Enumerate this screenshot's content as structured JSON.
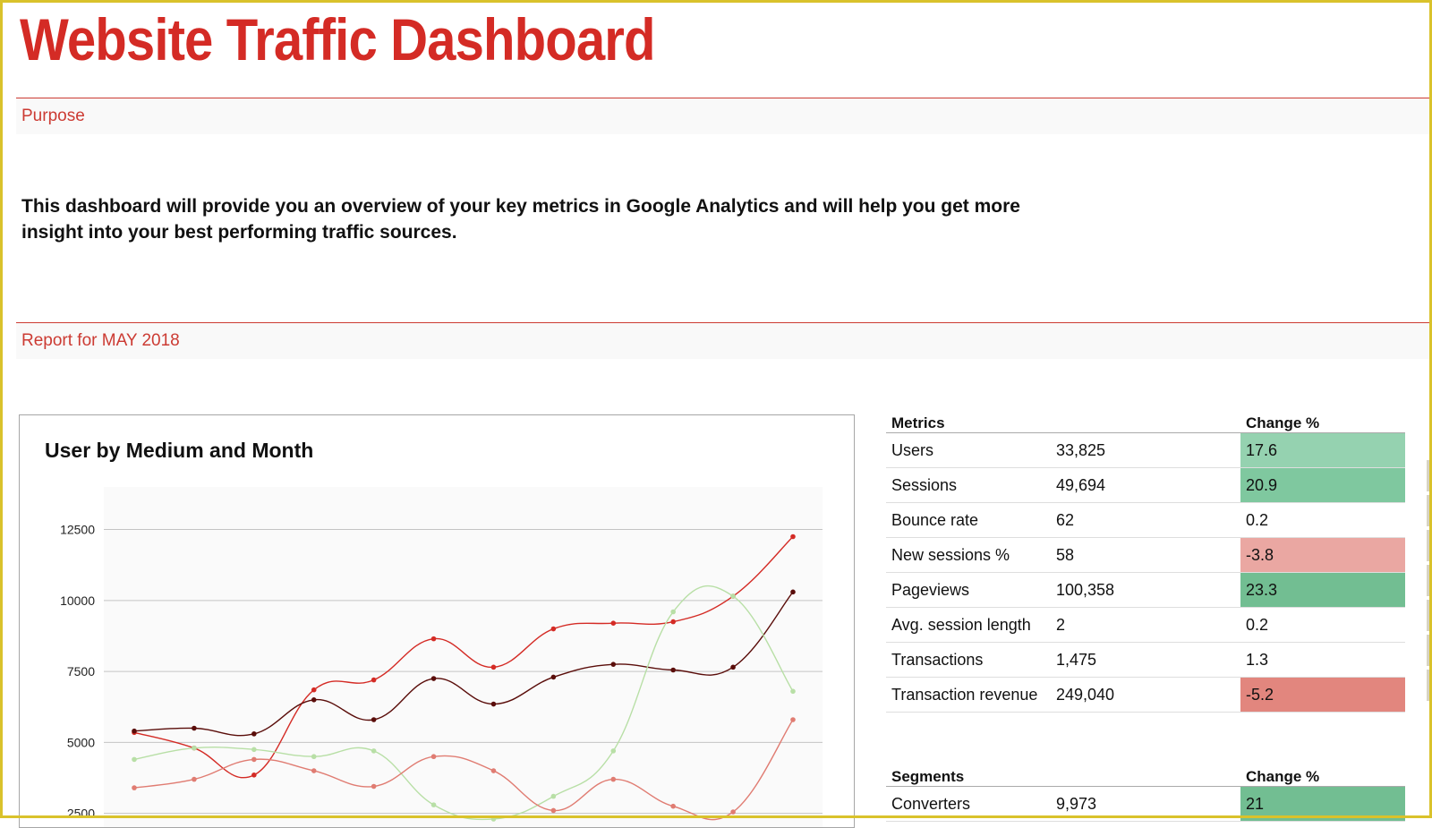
{
  "header": {
    "title": "Website Traffic Dashboard"
  },
  "purpose": {
    "label": "Purpose",
    "text": "This dashboard will provide you an overview of your key metrics in Google Analytics and will help you get more insight into your best performing traffic sources."
  },
  "report": {
    "label": "Report for MAY 2018"
  },
  "colors": {
    "brand_red": "#d42b25",
    "green_light": "#95d2b0",
    "green_mid": "#7fc89f",
    "green_strong": "#72be92",
    "red_light": "#eaa7a2",
    "red_strong": "#e2867e"
  },
  "chart_data": {
    "type": "line",
    "title": "User by Medium and Month",
    "xlabel": "",
    "ylabel": "",
    "y_ticks": [
      "12500",
      "10000",
      "7500",
      "5000",
      "2500"
    ],
    "ylim": [
      1700,
      14000
    ],
    "grid": true,
    "x": [
      1,
      2,
      3,
      4,
      5,
      6,
      7,
      8,
      9,
      10,
      11,
      12
    ],
    "series": [
      {
        "color": "#d42b25",
        "values": [
          5350,
          4800,
          3850,
          6850,
          7200,
          8650,
          7650,
          9000,
          9200,
          9250,
          10150,
          12250
        ]
      },
      {
        "color": "#5a0d0a",
        "values": [
          5400,
          5500,
          5300,
          6500,
          5800,
          7250,
          6350,
          7300,
          7750,
          7550,
          7650,
          10300
        ]
      },
      {
        "color": "#b8dfa6",
        "values": [
          4400,
          4800,
          4750,
          4500,
          4700,
          2800,
          2300,
          3100,
          4700,
          9600,
          10150,
          6800
        ]
      },
      {
        "color": "#e07c72",
        "values": [
          3400,
          3700,
          4400,
          4000,
          3450,
          4500,
          4000,
          2600,
          3700,
          2750,
          2550,
          5800
        ]
      }
    ]
  },
  "metrics_table": {
    "headers": [
      "Metrics",
      "",
      "Change %"
    ],
    "rows": [
      {
        "name": "Users",
        "value": "33,825",
        "change": "17.6",
        "bg": "#95d2b0"
      },
      {
        "name": "Sessions",
        "value": "49,694",
        "change": "20.9",
        "bg": "#7fc89f"
      },
      {
        "name": "Bounce rate",
        "value": "62",
        "change": "0.2",
        "bg": ""
      },
      {
        "name": "New sessions %",
        "value": "58",
        "change": "-3.8",
        "bg": "#eaa7a2"
      },
      {
        "name": "Pageviews",
        "value": "100,358",
        "change": "23.3",
        "bg": "#72be92"
      },
      {
        "name": "Avg. session length",
        "value": "2",
        "change": "0.2",
        "bg": ""
      },
      {
        "name": "Transactions",
        "value": "1,475",
        "change": "1.3",
        "bg": ""
      },
      {
        "name": "Transaction revenue",
        "value": "249,040",
        "change": "-5.2",
        "bg": "#e2867e"
      }
    ]
  },
  "segments_table": {
    "headers": [
      "Segments",
      "",
      "Change %"
    ],
    "rows": [
      {
        "name": "Converters",
        "value": "9,973",
        "change": "21",
        "bg": "#72be92"
      }
    ]
  }
}
